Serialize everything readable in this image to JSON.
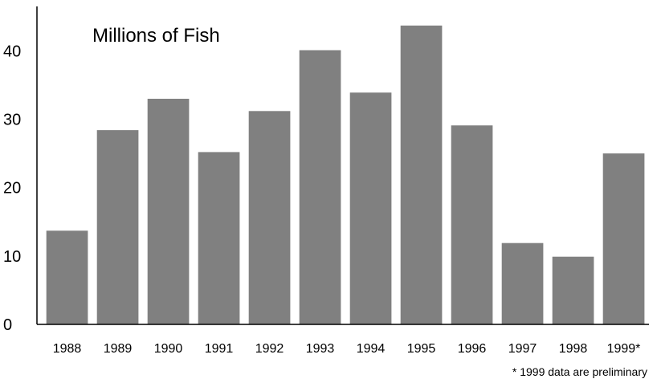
{
  "chart_data": {
    "type": "bar",
    "title": "Millions of Fish",
    "categories": [
      "1988",
      "1989",
      "1990",
      "1991",
      "1992",
      "1993",
      "1994",
      "1995",
      "1996",
      "1997",
      "1998",
      "1999*"
    ],
    "values": [
      13.7,
      28.4,
      33.0,
      25.2,
      31.2,
      40.1,
      33.9,
      43.7,
      29.1,
      11.9,
      9.9,
      25.0
    ],
    "yticks": [
      0,
      10,
      20,
      30,
      40
    ],
    "ylim": [
      0,
      46.5
    ],
    "xlabel": "",
    "ylabel": "",
    "grid": false,
    "bar_color": "#808080",
    "footnote": "* 1999 data are preliminary"
  }
}
